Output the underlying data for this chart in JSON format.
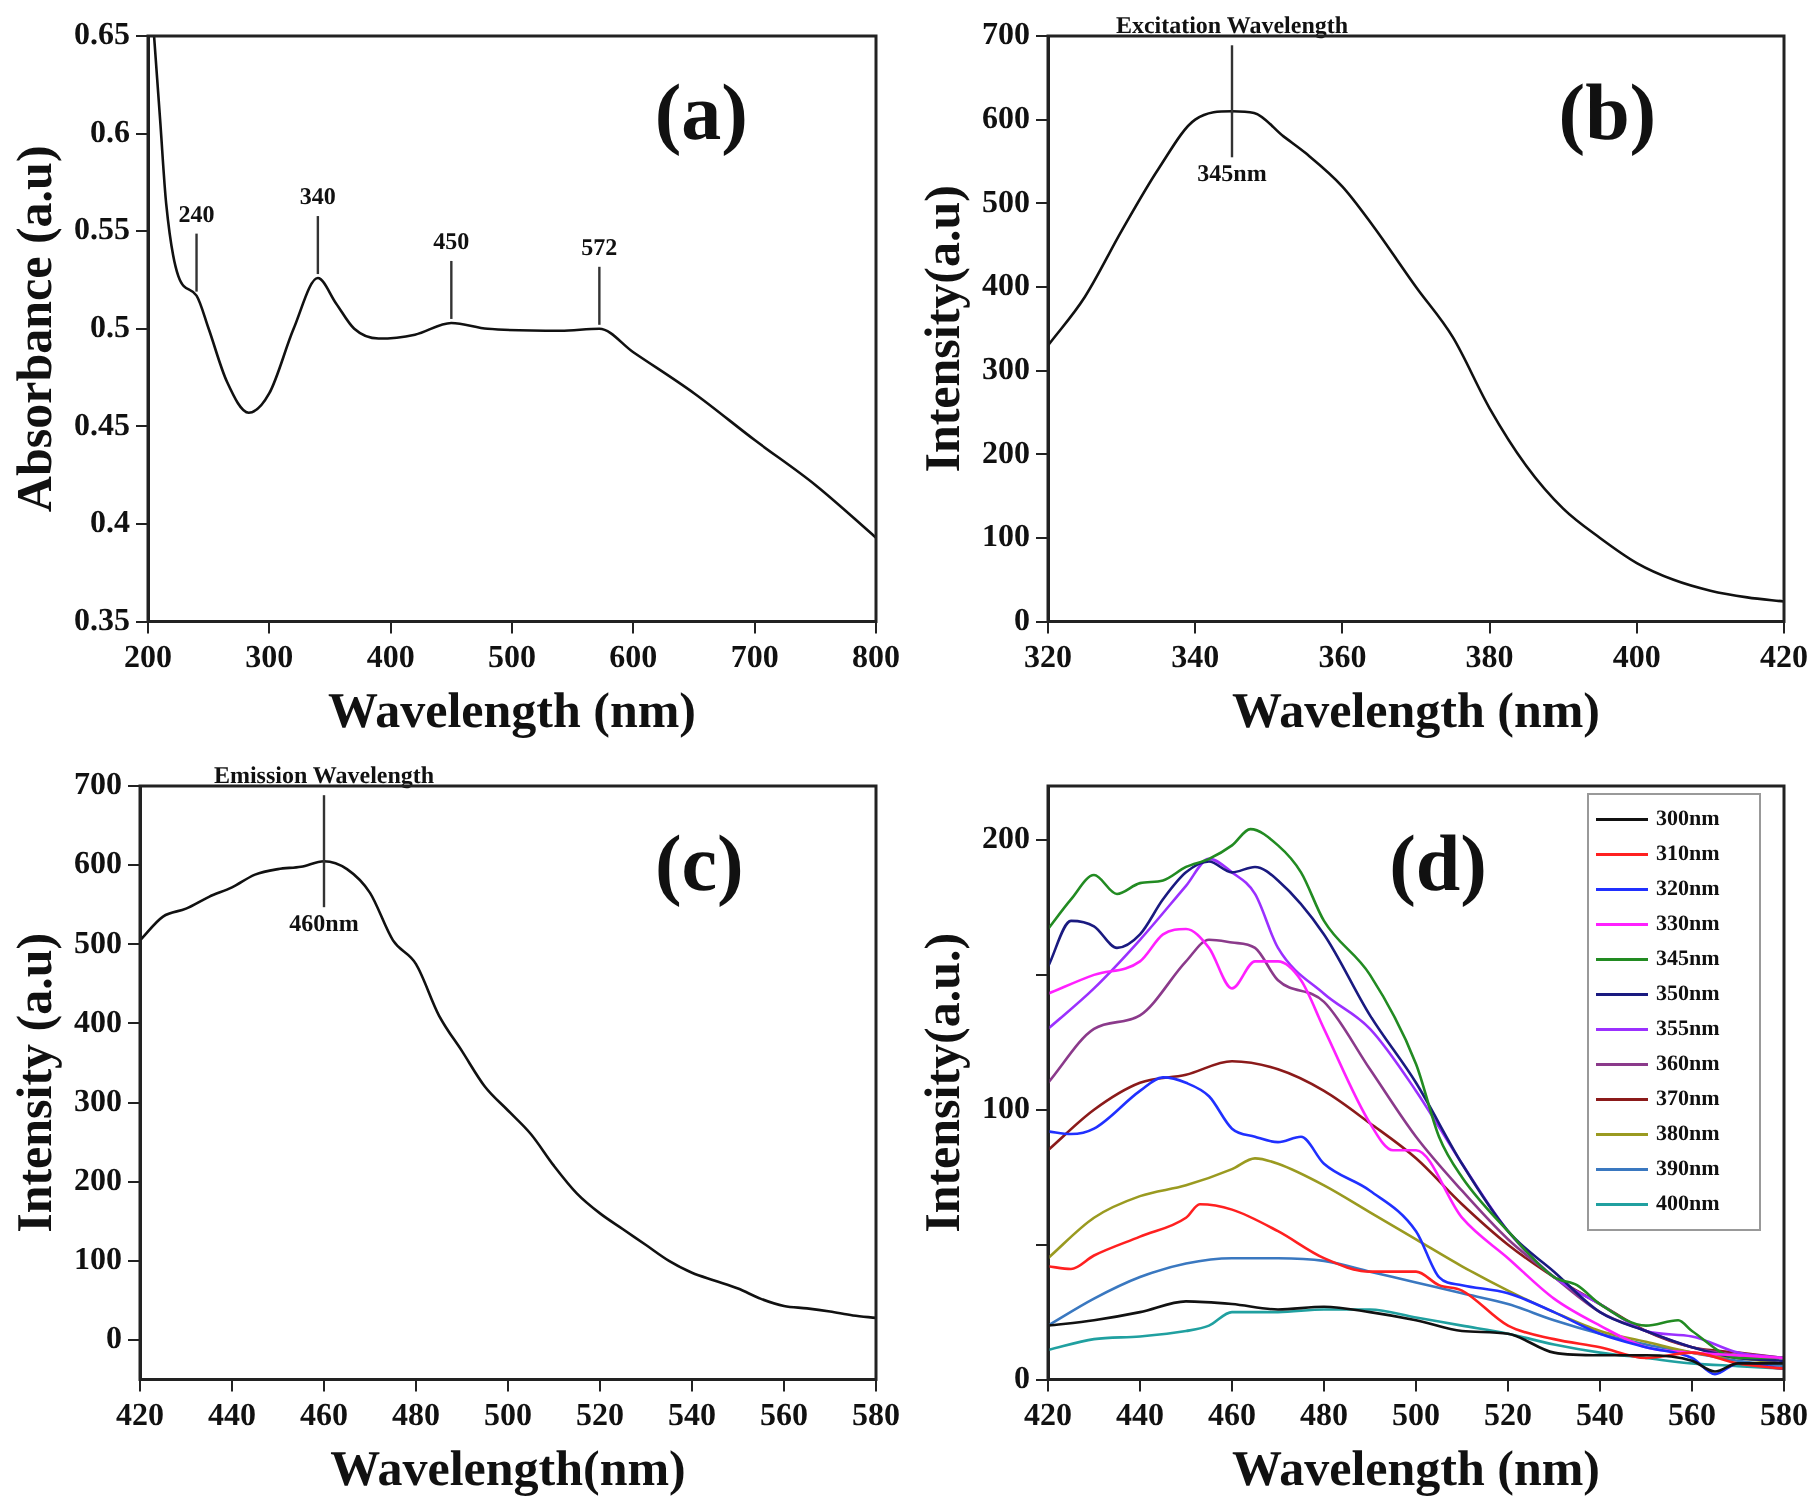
{
  "chart_data": [
    {
      "type": "line",
      "xlabel": "Wavelength (nm)",
      "ylabel": "Absorbance (a.u)",
      "xlim": [
        200,
        800
      ],
      "xticks": [
        200,
        300,
        400,
        500,
        600,
        700,
        800
      ],
      "ylim": [
        0.35,
        0.65
      ],
      "yticks": [
        0.35,
        0.4,
        0.45,
        0.5,
        0.55,
        0.6,
        0.65
      ],
      "grid": false,
      "legend": false,
      "marker": "none",
      "line_style": "solid",
      "annotations": [
        "(a)",
        {
          "text": "240",
          "x": 240,
          "y": 0.517
        },
        {
          "text": "340",
          "x": 340,
          "y": 0.526
        },
        {
          "text": "450",
          "x": 450,
          "y": 0.503
        },
        {
          "text": "572",
          "x": 572,
          "y": 0.5
        }
      ],
      "series": [
        {
          "color": "#111111",
          "x": [
            205,
            210,
            215,
            225,
            240,
            250,
            265,
            283,
            300,
            320,
            340,
            355,
            370,
            390,
            420,
            450,
            480,
            540,
            572,
            600,
            650,
            700,
            750,
            800
          ],
          "values": [
            0.65,
            0.607,
            0.564,
            0.527,
            0.517,
            0.5,
            0.473,
            0.457,
            0.467,
            0.5,
            0.526,
            0.513,
            0.5,
            0.495,
            0.497,
            0.503,
            0.5,
            0.499,
            0.5,
            0.488,
            0.467,
            0.443,
            0.42,
            0.393
          ]
        }
      ]
    },
    {
      "type": "line",
      "xlabel": "Wavelength (nm)",
      "ylabel": "Intensity(a.u)",
      "xlim": [
        320,
        420
      ],
      "xticks": [
        320,
        340,
        360,
        380,
        400,
        420
      ],
      "ylim": [
        0,
        700
      ],
      "yticks": [
        0,
        100,
        200,
        300,
        400,
        500,
        600,
        700
      ],
      "grid": false,
      "legend": false,
      "marker": "none",
      "line_style": "solid",
      "annotations": [
        "(b)",
        {
          "text": "Excitation Wavelength",
          "x": 345,
          "y": 610
        },
        {
          "text": "345nm",
          "x": 345,
          "y": 610
        }
      ],
      "series": [
        {
          "color": "#111111",
          "x": [
            320,
            325,
            330,
            335,
            340,
            345,
            348,
            352,
            355,
            360,
            364,
            370,
            375,
            380,
            385,
            390,
            395,
            400,
            405,
            410,
            415,
            420
          ],
          "values": [
            330,
            388,
            467,
            541,
            600,
            610,
            608,
            580,
            560,
            520,
            475,
            400,
            340,
            255,
            186,
            135,
            100,
            70,
            50,
            37,
            29,
            24
          ]
        }
      ]
    },
    {
      "type": "line",
      "xlabel": "Wavelength(nm)",
      "ylabel": "Intensity (a.u)",
      "xlim": [
        420,
        580
      ],
      "xticks": [
        420,
        440,
        460,
        480,
        500,
        520,
        540,
        560,
        580
      ],
      "ylim": [
        -50,
        700
      ],
      "yticks": [
        0,
        100,
        200,
        300,
        400,
        500,
        600,
        700
      ],
      "grid": false,
      "legend": false,
      "marker": "none",
      "line_style": "solid",
      "annotations": [
        "(c)",
        {
          "text": "Emission Wavelength",
          "x": 460,
          "y": 605
        },
        {
          "text": "460nm",
          "x": 460,
          "y": 605
        }
      ],
      "series": [
        {
          "color": "#111111",
          "x": [
            420,
            425,
            430,
            435,
            440,
            445,
            450,
            455,
            460,
            465,
            470,
            475,
            480,
            485,
            490,
            495,
            500,
            505,
            510,
            515,
            520,
            525,
            530,
            535,
            540,
            545,
            550,
            555,
            560,
            565,
            570,
            575,
            580
          ],
          "values": [
            505,
            535,
            545,
            560,
            572,
            588,
            595,
            598,
            605,
            595,
            565,
            505,
            475,
            410,
            365,
            320,
            290,
            260,
            220,
            185,
            160,
            140,
            120,
            100,
            85,
            75,
            65,
            52,
            43,
            40,
            36,
            31,
            28
          ]
        }
      ]
    },
    {
      "type": "line",
      "xlabel": "Wavelength (nm)",
      "ylabel": "Intensity(a.u.)",
      "xlim": [
        420,
        580
      ],
      "xticks": [
        420,
        440,
        460,
        480,
        500,
        520,
        540,
        560,
        580
      ],
      "ylim": [
        0,
        220
      ],
      "yticks": [
        0,
        {
          "value": 50,
          "label": null
        },
        100,
        {
          "value": 150,
          "label": null
        },
        200
      ],
      "grid": false,
      "legend": "top right",
      "marker": "none",
      "line_style": "solid",
      "annotations": [
        "(d)"
      ],
      "series": [
        {
          "name": "300nm",
          "color": "#111111",
          "x": [
            420,
            430,
            440,
            450,
            460,
            470,
            480,
            490,
            500,
            510,
            520,
            530,
            540,
            550,
            560,
            565,
            570,
            580
          ],
          "values": [
            20,
            22,
            25,
            29,
            28,
            26,
            27,
            25,
            22,
            18,
            17,
            10,
            9,
            9,
            7,
            3,
            6,
            6
          ]
        },
        {
          "name": "310nm",
          "color": "#ff2020",
          "x": [
            420,
            425,
            430,
            440,
            450,
            453,
            460,
            470,
            480,
            490,
            500,
            505,
            510,
            520,
            530,
            540,
            550,
            560,
            570,
            580
          ],
          "values": [
            42,
            41,
            46,
            53,
            60,
            65,
            63,
            55,
            45,
            40,
            40,
            35,
            33,
            20,
            15,
            12,
            8,
            10,
            6,
            4
          ]
        },
        {
          "name": "320nm",
          "color": "#2030ff",
          "x": [
            420,
            425,
            430,
            440,
            445,
            450,
            455,
            460,
            465,
            470,
            475,
            480,
            490,
            500,
            505,
            510,
            520,
            530,
            540,
            550,
            560,
            565,
            570,
            580
          ],
          "values": [
            92,
            91,
            93,
            107,
            112,
            110,
            105,
            93,
            90,
            88,
            90,
            80,
            70,
            55,
            38,
            35,
            32,
            25,
            17,
            12,
            8,
            2,
            6,
            4
          ]
        },
        {
          "name": "330nm",
          "color": "#ff20ff",
          "x": [
            420,
            430,
            440,
            445,
            450,
            455,
            460,
            465,
            470,
            475,
            480,
            490,
            495,
            500,
            510,
            520,
            530,
            540,
            550,
            560,
            570,
            580
          ],
          "values": [
            143,
            150,
            155,
            165,
            167,
            160,
            145,
            155,
            155,
            148,
            130,
            95,
            85,
            85,
            60,
            45,
            30,
            20,
            12,
            10,
            9,
            8
          ]
        },
        {
          "name": "345nm",
          "color": "#228b22",
          "x": [
            420,
            425,
            430,
            435,
            440,
            445,
            450,
            455,
            460,
            464,
            470,
            475,
            480,
            490,
            500,
            505,
            510,
            520,
            530,
            535,
            540,
            550,
            557,
            560,
            570,
            580
          ],
          "values": [
            167,
            178,
            187,
            180,
            184,
            185,
            190,
            193,
            198,
            204,
            198,
            188,
            170,
            150,
            117,
            90,
            75,
            55,
            38,
            35,
            28,
            20,
            22,
            18,
            8,
            8
          ]
        },
        {
          "name": "350nm",
          "color": "#1a1a80",
          "x": [
            420,
            425,
            430,
            435,
            440,
            445,
            450,
            455,
            460,
            465,
            470,
            480,
            490,
            500,
            510,
            520,
            530,
            540,
            550,
            560,
            570,
            580
          ],
          "values": [
            153,
            170,
            168,
            160,
            165,
            178,
            188,
            192,
            188,
            190,
            185,
            165,
            135,
            110,
            80,
            55,
            40,
            25,
            18,
            12,
            8,
            7
          ]
        },
        {
          "name": "355nm",
          "color": "#9b30ff",
          "x": [
            420,
            430,
            440,
            450,
            455,
            460,
            465,
            470,
            480,
            490,
            500,
            510,
            520,
            530,
            540,
            550,
            560,
            570,
            580
          ],
          "values": [
            130,
            145,
            163,
            183,
            193,
            188,
            180,
            160,
            143,
            130,
            107,
            80,
            55,
            38,
            28,
            18,
            16,
            10,
            8
          ]
        },
        {
          "name": "360nm",
          "color": "#8b3a8b",
          "x": [
            420,
            430,
            440,
            450,
            455,
            460,
            465,
            470,
            480,
            490,
            500,
            510,
            520,
            530,
            540,
            550,
            560,
            570,
            580
          ],
          "values": [
            110,
            130,
            135,
            155,
            163,
            162,
            160,
            148,
            140,
            115,
            90,
            70,
            52,
            38,
            25,
            18,
            12,
            9,
            8
          ]
        },
        {
          "name": "370nm",
          "color": "#8b1a1a",
          "x": [
            420,
            430,
            440,
            450,
            460,
            470,
            480,
            490,
            500,
            510,
            520,
            530,
            540,
            550,
            560,
            570,
            580
          ],
          "values": [
            85,
            100,
            110,
            113,
            118,
            115,
            107,
            95,
            82,
            65,
            50,
            38,
            28,
            18,
            12,
            10,
            8
          ]
        },
        {
          "name": "380nm",
          "color": "#9a9a20",
          "x": [
            420,
            430,
            440,
            450,
            460,
            465,
            470,
            480,
            490,
            500,
            510,
            520,
            530,
            540,
            550,
            560,
            570,
            580
          ],
          "values": [
            45,
            60,
            68,
            72,
            78,
            82,
            80,
            72,
            62,
            52,
            42,
            33,
            25,
            18,
            14,
            10,
            8,
            6
          ]
        },
        {
          "name": "390nm",
          "color": "#3a78c0",
          "x": [
            420,
            430,
            440,
            450,
            460,
            470,
            480,
            490,
            500,
            510,
            520,
            530,
            540,
            550,
            560,
            570,
            580
          ],
          "values": [
            20,
            30,
            38,
            43,
            45,
            45,
            44,
            40,
            36,
            32,
            28,
            22,
            17,
            13,
            10,
            7,
            5
          ]
        },
        {
          "name": "400nm",
          "color": "#20a0a0",
          "x": [
            420,
            430,
            440,
            450,
            455,
            460,
            470,
            480,
            490,
            500,
            510,
            520,
            530,
            540,
            550,
            560,
            570,
            580
          ],
          "values": [
            11,
            15,
            16,
            18,
            20,
            25,
            25,
            26,
            26,
            23,
            20,
            17,
            13,
            10,
            8,
            6,
            5,
            4
          ]
        }
      ]
    }
  ]
}
